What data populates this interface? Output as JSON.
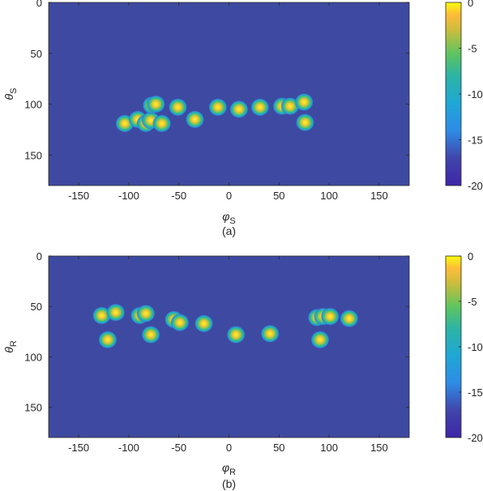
{
  "chart_data": [
    {
      "type": "heatmap",
      "caption": "(a)",
      "xlabel": "φ",
      "xlabel_sub": "S",
      "ylabel": "θ",
      "ylabel_sub": "S",
      "xlim": [
        -180,
        180
      ],
      "ylim": [
        0,
        180
      ],
      "y_reversed": true,
      "xticks": [
        -150,
        -100,
        -50,
        0,
        50,
        100,
        150
      ],
      "yticks": [
        0,
        50,
        100,
        150
      ],
      "colorbar": {
        "min": -20,
        "max": 0,
        "ticks": [
          0,
          -5,
          -10,
          -15,
          -20
        ]
      },
      "background_value": -20,
      "peaks": [
        {
          "x": -104,
          "y": 119
        },
        {
          "x": -91,
          "y": 115
        },
        {
          "x": -83,
          "y": 119
        },
        {
          "x": -78,
          "y": 116
        },
        {
          "x": -77,
          "y": 101
        },
        {
          "x": -73,
          "y": 100
        },
        {
          "x": -67,
          "y": 119
        },
        {
          "x": -51,
          "y": 103
        },
        {
          "x": -34,
          "y": 115
        },
        {
          "x": -11,
          "y": 103
        },
        {
          "x": 10,
          "y": 105
        },
        {
          "x": 31,
          "y": 103
        },
        {
          "x": 53,
          "y": 102
        },
        {
          "x": 61,
          "y": 102
        },
        {
          "x": 75,
          "y": 98
        },
        {
          "x": 76,
          "y": 118
        }
      ]
    },
    {
      "type": "heatmap",
      "caption": "(b)",
      "xlabel": "φ",
      "xlabel_sub": "R",
      "ylabel": "θ",
      "ylabel_sub": "R",
      "xlim": [
        -180,
        180
      ],
      "ylim": [
        0,
        180
      ],
      "y_reversed": true,
      "xticks": [
        -150,
        -100,
        -50,
        0,
        50,
        100,
        150
      ],
      "yticks": [
        0,
        50,
        100,
        150
      ],
      "colorbar": {
        "min": -20,
        "max": 0,
        "ticks": [
          0,
          -5,
          -10,
          -15,
          -20
        ]
      },
      "background_value": -20,
      "peaks": [
        {
          "x": -127,
          "y": 59
        },
        {
          "x": -113,
          "y": 56
        },
        {
          "x": -121,
          "y": 83
        },
        {
          "x": -89,
          "y": 59
        },
        {
          "x": -83,
          "y": 57
        },
        {
          "x": -78,
          "y": 78
        },
        {
          "x": -55,
          "y": 63
        },
        {
          "x": -49,
          "y": 66
        },
        {
          "x": -25,
          "y": 67
        },
        {
          "x": 7,
          "y": 78
        },
        {
          "x": 41,
          "y": 77
        },
        {
          "x": 88,
          "y": 61
        },
        {
          "x": 94,
          "y": 60
        },
        {
          "x": 101,
          "y": 60
        },
        {
          "x": 120,
          "y": 62
        },
        {
          "x": 91,
          "y": 83
        }
      ]
    }
  ]
}
